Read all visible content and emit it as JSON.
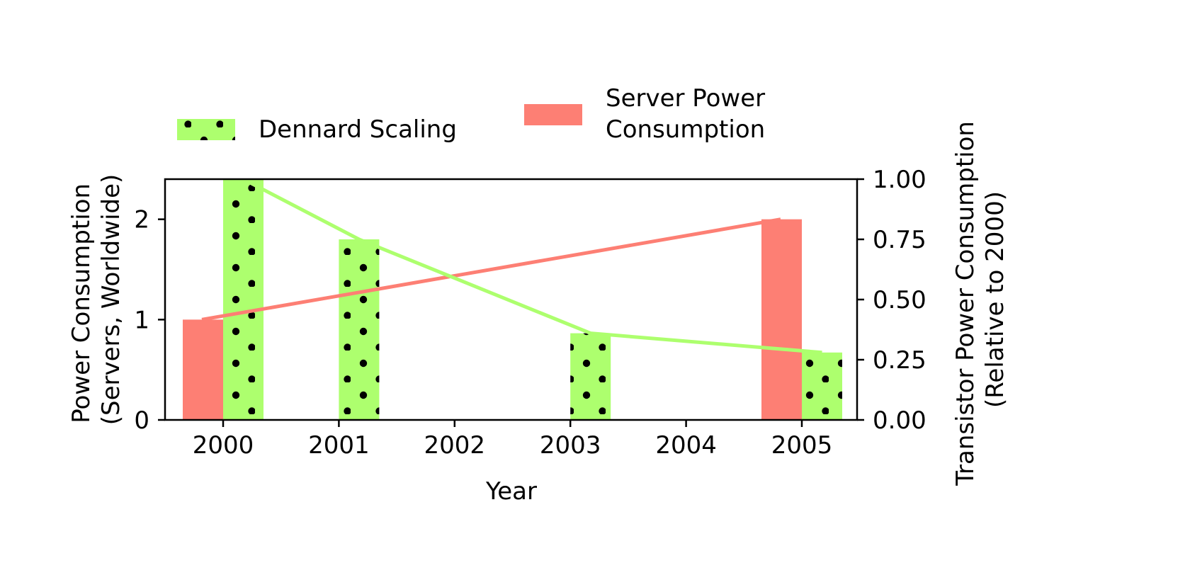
{
  "chart_data": {
    "type": "bar",
    "xlabel": "Year",
    "ylabel": [
      "Power Consumption",
      "(Servers, Worldwide)"
    ],
    "y2label": [
      "Transistor Power Consumption",
      "(Relative to 2000)"
    ],
    "x_ticks": [
      "2000",
      "2001",
      "2002",
      "2003",
      "2004",
      "2005"
    ],
    "y_ticks": [
      "0",
      "1",
      "2"
    ],
    "y2_ticks": [
      "0.00",
      "0.25",
      "0.50",
      "0.75",
      "1.00"
    ],
    "ylim": [
      0,
      2.4
    ],
    "y2lim": [
      0,
      1.0
    ],
    "grid": false,
    "legend_position": "top",
    "series": [
      {
        "name": "Dennard Scaling",
        "axis": "right",
        "color": "#adff6e",
        "hatch": "dots",
        "bars": [
          {
            "x": 2000,
            "value": 1.0
          },
          {
            "x": 2001,
            "value": 0.75
          },
          {
            "x": 2003,
            "value": 0.36
          },
          {
            "x": 2005,
            "value": 0.28
          }
        ],
        "line": [
          {
            "x": 2000,
            "value": 1.0
          },
          {
            "x": 2001,
            "value": 0.75
          },
          {
            "x": 2003,
            "value": 0.36
          },
          {
            "x": 2005,
            "value": 0.28
          }
        ]
      },
      {
        "name": "Server Power Consumption",
        "legend_lines": [
          "Server Power",
          "Consumption"
        ],
        "axis": "left",
        "color": "#fd7f74",
        "bars": [
          {
            "x": 2000,
            "value": 1.0
          },
          {
            "x": 2005,
            "value": 2.0
          }
        ],
        "line": [
          {
            "x": 2000,
            "value": 1.0
          },
          {
            "x": 2005,
            "value": 2.0
          }
        ]
      }
    ]
  }
}
